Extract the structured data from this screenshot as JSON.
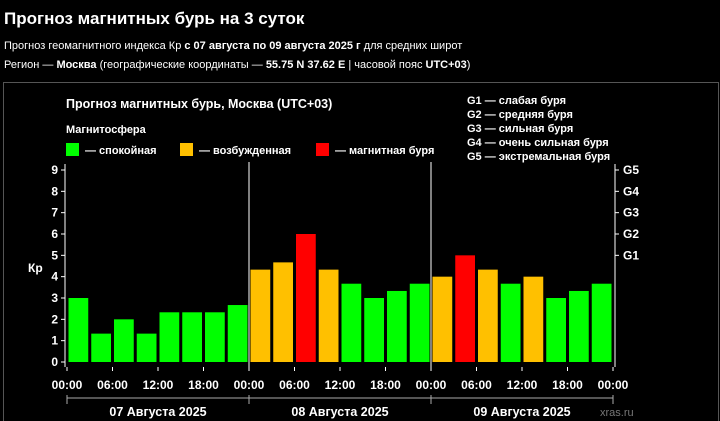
{
  "header": {
    "title": "Прогноз магнитных бурь на 3 суток",
    "line1_a": "Прогноз геомагнитного индекса Кр ",
    "line1_b": "с 07 августа по 09 августа 2025 г",
    "line1_c": " для средних широт",
    "line2_a": "Регион — ",
    "line2_b": "Москва",
    "line2_c": " (географические координаты — ",
    "line2_d": "55.75 N 37.62 E",
    "line2_e": " | часовой пояс ",
    "line2_f": "UTC+03",
    "line2_g": ")"
  },
  "chart_data": {
    "type": "bar",
    "title": "Прогноз магнитных бурь, Москва (UTC+03)",
    "ylabel": "Кр",
    "ylim": [
      0,
      9
    ],
    "yticks": [
      "0",
      "1",
      "2",
      "3",
      "4",
      "5",
      "6",
      "7",
      "8",
      "9"
    ],
    "right_axis_labels": [
      {
        "value": 5,
        "label": "G1"
      },
      {
        "value": 6,
        "label": "G2"
      },
      {
        "value": 7,
        "label": "G3"
      },
      {
        "value": 8,
        "label": "G4"
      },
      {
        "value": 9,
        "label": "G5"
      }
    ],
    "x_tick_labels": [
      "00:00",
      "06:00",
      "12:00",
      "18:00",
      "00:00",
      "06:00",
      "12:00",
      "18:00",
      "00:00",
      "06:00",
      "12:00",
      "18:00",
      "00:00"
    ],
    "day_labels": [
      "07 Августа 2025",
      "08 Августа 2025",
      "09 Августа 2025"
    ],
    "values": [
      3,
      1.33,
      2,
      1.33,
      2.33,
      2.33,
      2.33,
      2.67,
      4.33,
      4.67,
      6,
      4.33,
      3.67,
      3,
      3.33,
      3.67,
      4,
      5,
      4.33,
      3.67,
      4,
      3,
      3.33,
      3.67
    ],
    "colors": {
      "quiet": "#00ff00",
      "active": "#ffc000",
      "storm": "#ff0000"
    },
    "legend": {
      "title": "Магнитосфера",
      "items": [
        {
          "key": "quiet",
          "label": "— спокойная"
        },
        {
          "key": "active",
          "label": "— возбужденная"
        },
        {
          "key": "storm",
          "label": "— магнитная буря"
        }
      ]
    },
    "storm_scale": [
      "G1 — слабая буря",
      "G2 — средняя буря",
      "G3 — сильная буря",
      "G4 — очень сильная буря",
      "G5 — экстремальная буря"
    ],
    "watermark": "xras.ru",
    "grid": false
  }
}
